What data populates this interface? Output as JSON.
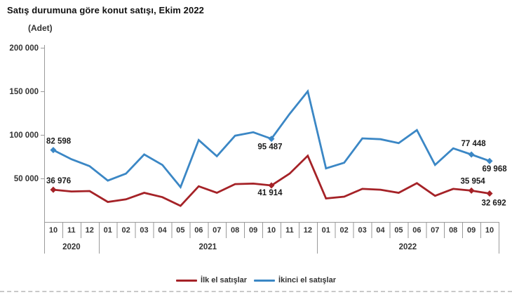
{
  "title": "Satış durumuna göre konut satışı, Ekim 2022",
  "unit_label": "(Adet)",
  "legend": [
    {
      "name": "İlk el satışlar",
      "color": "#a52227"
    },
    {
      "name": "İkinci el satışlar",
      "color": "#3b87c5"
    }
  ],
  "colors": {
    "first_hand": "#a52227",
    "second_hand": "#3b87c5",
    "axis": "#9a9a9a",
    "tick_text": "#333333",
    "data_label_text": "#1a1a1a"
  },
  "chart_data": {
    "type": "line",
    "title": "Satış durumuna göre konut satışı, Ekim 2022",
    "ylabel": "(Adet)",
    "ylim": [
      0,
      200000
    ],
    "grid": false,
    "legend_position": "bottom",
    "x_months": [
      "10",
      "11",
      "12",
      "01",
      "02",
      "03",
      "04",
      "05",
      "06",
      "07",
      "08",
      "09",
      "10",
      "11",
      "12",
      "01",
      "02",
      "03",
      "04",
      "05",
      "06",
      "07",
      "08",
      "09",
      "10"
    ],
    "year_groups": [
      {
        "label": "2020",
        "span": 3
      },
      {
        "label": "2021",
        "span": 12
      },
      {
        "label": "2022",
        "span": 10
      }
    ],
    "y_ticks": [
      {
        "label": "50 000",
        "value": 50000
      },
      {
        "label": "100 000",
        "value": 100000
      },
      {
        "label": "150 000",
        "value": 150000
      },
      {
        "label": "200 000",
        "value": 200000
      }
    ],
    "series": [
      {
        "name": "İlk el satışlar",
        "color": "#a52227",
        "values": [
          36976,
          35000,
          35500,
          23000,
          26000,
          33500,
          28500,
          18500,
          41000,
          33500,
          43500,
          44000,
          41914,
          55500,
          76000,
          27000,
          29000,
          38000,
          37000,
          33500,
          44500,
          30000,
          38000,
          35954,
          32692
        ],
        "labeled_points": [
          {
            "index": 0,
            "label": "36 976",
            "anchor": "start",
            "dx": -10,
            "dy": -9
          },
          {
            "index": 12,
            "label": "41 914",
            "anchor": "middle",
            "dx": -2,
            "dy": 14
          },
          {
            "index": 23,
            "label": "35 954",
            "anchor": "middle",
            "dx": 2,
            "dy": -10
          },
          {
            "index": 24,
            "label": "32 692",
            "anchor": "middle",
            "dx": 6,
            "dy": 17
          }
        ]
      },
      {
        "name": "İkinci el satışlar",
        "color": "#3b87c5",
        "values": [
          82598,
          72000,
          64000,
          47500,
          55500,
          77500,
          65500,
          40000,
          94000,
          75500,
          99000,
          103000,
          95487,
          124000,
          150000,
          61500,
          68000,
          96000,
          95000,
          90500,
          105500,
          65500,
          84500,
          77448,
          69968
        ],
        "labeled_points": [
          {
            "index": 0,
            "label": "82 598",
            "anchor": "start",
            "dx": -10,
            "dy": -9
          },
          {
            "index": 12,
            "label": "95 487",
            "anchor": "middle",
            "dx": -2,
            "dy": 15
          },
          {
            "index": 23,
            "label": "77 448",
            "anchor": "middle",
            "dx": 3,
            "dy": -12
          },
          {
            "index": 24,
            "label": "69 968",
            "anchor": "middle",
            "dx": 7,
            "dy": 15
          }
        ]
      }
    ]
  }
}
